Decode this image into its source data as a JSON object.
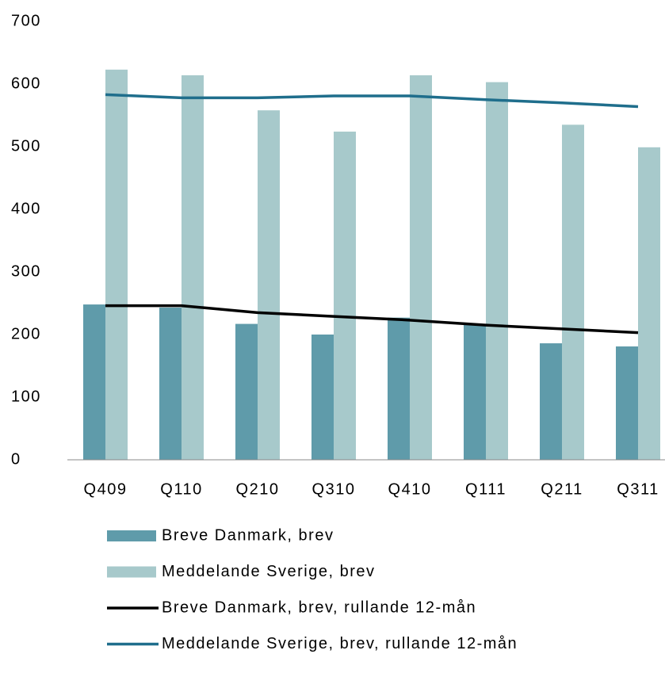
{
  "chart_data": {
    "type": "bar",
    "categories": [
      "Q409",
      "Q110",
      "Q210",
      "Q310",
      "Q410",
      "Q111",
      "Q211",
      "Q311"
    ],
    "series": [
      {
        "name": "Breve Danmark, brev",
        "type": "bar",
        "color": "#5f9baa",
        "values": [
          248,
          243,
          217,
          200,
          227,
          217,
          186,
          181
        ]
      },
      {
        "name": "Meddelande Sverige, brev",
        "type": "bar",
        "color": "#a7c9cb",
        "values": [
          623,
          614,
          558,
          524,
          614,
          603,
          535,
          499
        ]
      },
      {
        "name": "Breve Danmark, brev, rullande 12-mån",
        "type": "line",
        "color": "#000000",
        "values": [
          246,
          246,
          235,
          229,
          223,
          215,
          209,
          203
        ]
      },
      {
        "name": "Meddelande Sverige, brev, rullande 12-mån",
        "type": "line",
        "color": "#1f6e8c",
        "values": [
          583,
          578,
          578,
          581,
          581,
          575,
          570,
          564
        ]
      }
    ],
    "ylim": [
      0,
      700
    ],
    "yticks": [
      0,
      100,
      200,
      300,
      400,
      500,
      600,
      700
    ],
    "grid": false
  }
}
